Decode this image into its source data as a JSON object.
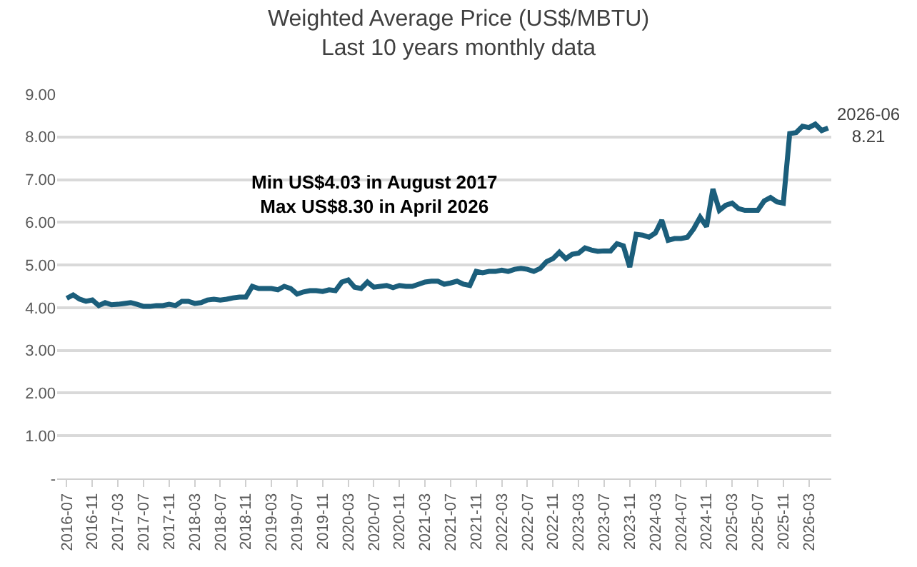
{
  "chart_data": {
    "type": "line",
    "title": "Weighted Average Price (US$/MBTU)",
    "subtitle": "Last 10 years monthly data",
    "categories": [
      "2016-07",
      null,
      null,
      null,
      "2016-11",
      null,
      null,
      null,
      "2017-03",
      null,
      null,
      null,
      "2017-07",
      null,
      null,
      null,
      "2017-11",
      null,
      null,
      null,
      "2018-03",
      null,
      null,
      null,
      "2018-07",
      null,
      null,
      null,
      "2018-11",
      null,
      null,
      null,
      "2019-03",
      null,
      null,
      null,
      "2019-07",
      null,
      null,
      null,
      "2019-11",
      null,
      null,
      null,
      "2020-03",
      null,
      null,
      null,
      "2020-07",
      null,
      null,
      null,
      "2020-11",
      null,
      null,
      null,
      "2021-03",
      null,
      null,
      null,
      "2021-07",
      null,
      null,
      null,
      "2021-11",
      null,
      null,
      null,
      "2022-03",
      null,
      null,
      null,
      "2022-07",
      null,
      null,
      null,
      "2022-11",
      null,
      null,
      null,
      "2023-03",
      null,
      null,
      null,
      "2023-07",
      null,
      null,
      null,
      "2023-11",
      null,
      null,
      null,
      "2024-03",
      null,
      null,
      null,
      "2024-07",
      null,
      null,
      null,
      "2024-11",
      null,
      null,
      null,
      "2025-03",
      null,
      null,
      null,
      "2025-07",
      null,
      null,
      null,
      "2025-11",
      null,
      null,
      null,
      "2026-03",
      null,
      null,
      null
    ],
    "series": [
      {
        "color": "#1b5e7b",
        "values": [
          4.22,
          4.3,
          4.2,
          4.15,
          4.18,
          4.05,
          4.12,
          4.07,
          4.08,
          4.1,
          4.12,
          4.08,
          4.03,
          4.03,
          4.05,
          4.05,
          4.08,
          4.05,
          4.15,
          4.15,
          4.1,
          4.12,
          4.18,
          4.2,
          4.18,
          4.2,
          4.23,
          4.25,
          4.25,
          4.5,
          4.45,
          4.45,
          4.45,
          4.42,
          4.5,
          4.45,
          4.32,
          4.37,
          4.4,
          4.4,
          4.38,
          4.42,
          4.4,
          4.6,
          4.65,
          4.48,
          4.45,
          4.6,
          4.48,
          4.5,
          4.52,
          4.47,
          4.52,
          4.5,
          4.5,
          4.55,
          4.6,
          4.62,
          4.62,
          4.55,
          4.58,
          4.62,
          4.55,
          4.52,
          4.85,
          4.82,
          4.85,
          4.85,
          4.88,
          4.85,
          4.9,
          4.92,
          4.9,
          4.85,
          4.92,
          5.08,
          5.15,
          5.3,
          5.15,
          5.25,
          5.28,
          5.4,
          5.35,
          5.32,
          5.33,
          5.33,
          5.5,
          5.45,
          4.95,
          5.72,
          5.7,
          5.65,
          5.75,
          6.05,
          5.58,
          5.62,
          5.62,
          5.65,
          5.85,
          6.12,
          5.9,
          6.78,
          6.28,
          6.4,
          6.45,
          6.32,
          6.28,
          6.28,
          6.28,
          6.5,
          6.58,
          6.48,
          6.45,
          8.08,
          8.1,
          8.25,
          8.22,
          8.3,
          8.15,
          8.21
        ]
      }
    ],
    "ylim": [
      0,
      9
    ],
    "yticks": [
      {
        "value": 0,
        "label": "-"
      },
      {
        "value": 1,
        "label": "1.00"
      },
      {
        "value": 2,
        "label": "2.00"
      },
      {
        "value": 3,
        "label": "3.00"
      },
      {
        "value": 4,
        "label": "4.00"
      },
      {
        "value": 5,
        "label": "5.00"
      },
      {
        "value": 6,
        "label": "6.00"
      },
      {
        "value": 7,
        "label": "7.00"
      },
      {
        "value": 8,
        "label": "8.00"
      },
      {
        "value": 9,
        "label": "9.00"
      }
    ],
    "grid": "y",
    "marker": "none",
    "line_style": "solid",
    "annotations": [
      "Min US$4.03 in August 2017\nMax US$8.30 in April 2026",
      "2026-06\n8.21"
    ]
  }
}
